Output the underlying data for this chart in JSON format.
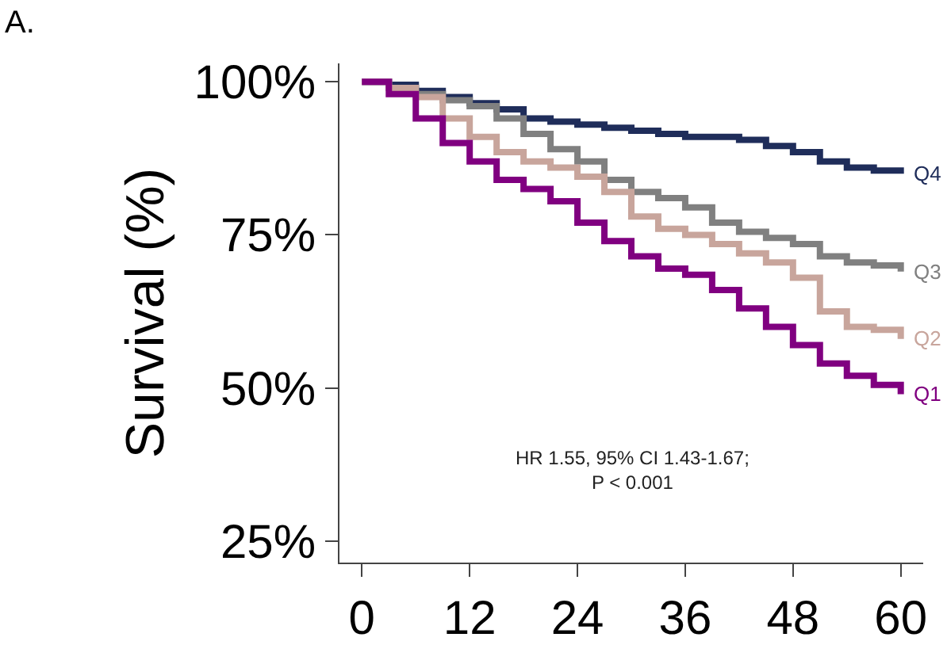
{
  "chart_data": {
    "type": "step",
    "title": "A.",
    "ylabel": "Survival (%)",
    "xlim": [
      -2.5,
      62.5
    ],
    "xticks": [
      0,
      12,
      24,
      36,
      48,
      60
    ],
    "ylim": [
      21.5,
      103
    ],
    "yticks": [
      {
        "value": 25,
        "label": "25%"
      },
      {
        "value": 50,
        "label": "50%"
      },
      {
        "value": 75,
        "label": "75%"
      },
      {
        "value": 100,
        "label": "100%"
      }
    ],
    "legend": false,
    "annotations": [
      "HR 1.55, 95% CI 1.43-1.67;\nP < 0.001"
    ],
    "series": [
      {
        "name": "Q4",
        "color": "#1f2d5a",
        "x": [
          0,
          3,
          6,
          9,
          12,
          15,
          18,
          21,
          24,
          27,
          30,
          33,
          36,
          39,
          42,
          45,
          48,
          51,
          54,
          57,
          60
        ],
        "values": [
          100,
          99.5,
          98.5,
          97.5,
          96.5,
          95.5,
          94,
          93.5,
          93,
          92.5,
          92,
          91.5,
          91,
          91,
          90.5,
          89.5,
          88.5,
          87,
          86,
          85.5,
          85
        ]
      },
      {
        "name": "Q3",
        "color": "#808080",
        "x": [
          0,
          3,
          6,
          9,
          12,
          15,
          18,
          21,
          24,
          27,
          30,
          33,
          36,
          39,
          42,
          45,
          48,
          51,
          54,
          57,
          60
        ],
        "values": [
          100,
          99,
          98,
          97,
          96,
          94,
          91.5,
          89,
          87,
          84,
          82,
          81,
          79.5,
          77,
          75.5,
          74.5,
          73.5,
          71.5,
          70.5,
          70,
          69
        ]
      },
      {
        "name": "Q2",
        "color": "#c8a59c",
        "x": [
          0,
          3,
          6,
          9,
          12,
          15,
          18,
          21,
          24,
          27,
          30,
          33,
          36,
          39,
          42,
          45,
          48,
          51,
          54,
          57,
          60
        ],
        "values": [
          100,
          99,
          97.5,
          94,
          91,
          88.5,
          87,
          86,
          84.5,
          82,
          78,
          76,
          75,
          73.5,
          72,
          70.5,
          68,
          62.5,
          60,
          59.5,
          58
        ]
      },
      {
        "name": "Q1",
        "color": "#800080",
        "x": [
          0,
          3,
          6,
          9,
          12,
          15,
          18,
          21,
          24,
          27,
          30,
          33,
          36,
          39,
          42,
          45,
          48,
          51,
          54,
          57,
          60
        ],
        "values": [
          100,
          98,
          94,
          90,
          87,
          84,
          82.5,
          80.5,
          77,
          74,
          71.5,
          69.5,
          68.5,
          66,
          63,
          60,
          57,
          54,
          52,
          50.5,
          49
        ]
      }
    ]
  }
}
